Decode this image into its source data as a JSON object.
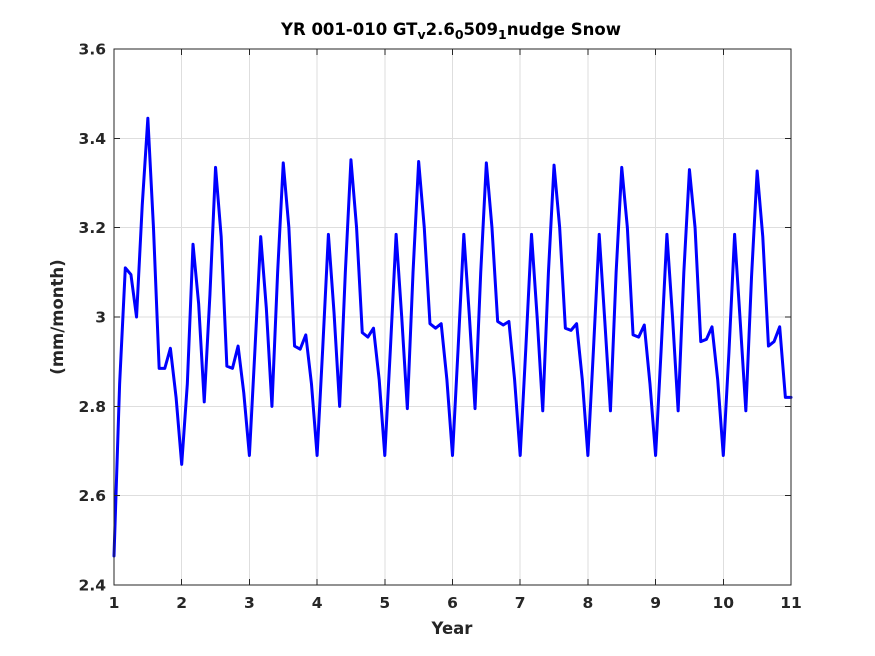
{
  "chart_data": {
    "type": "line",
    "title": {
      "parts": [
        {
          "text": "YR 001-010 GT",
          "shift": "base"
        },
        {
          "text": "v",
          "shift": "sub"
        },
        {
          "text": "2.6",
          "shift": "base"
        },
        {
          "text": "0",
          "shift": "sub"
        },
        {
          "text": "509",
          "shift": "base"
        },
        {
          "text": "1",
          "shift": "sub"
        },
        {
          "text": "nudge Snow",
          "shift": "base"
        }
      ]
    },
    "xlabel": "Year",
    "ylabel": "(mm/month)",
    "xlim": [
      1,
      11
    ],
    "ylim": [
      2.4,
      3.6
    ],
    "xticks": [
      1,
      2,
      3,
      4,
      5,
      6,
      7,
      8,
      9,
      10,
      11
    ],
    "xtick_labels": [
      "1",
      "2",
      "3",
      "4",
      "5",
      "6",
      "7",
      "8",
      "9",
      "10",
      "11"
    ],
    "yticks": [
      2.4,
      2.6,
      2.8,
      3.0,
      3.2,
      3.4,
      3.6
    ],
    "ytick_labels": [
      "2.4",
      "2.6",
      "2.8",
      "3",
      "3.2",
      "3.4",
      "3.6"
    ],
    "grid": true,
    "series": [
      {
        "color": "#0000ff",
        "x": [
          1.0,
          1.083,
          1.167,
          1.25,
          1.333,
          1.417,
          1.5,
          1.583,
          1.667,
          1.75,
          1.833,
          1.917,
          2.0,
          2.083,
          2.167,
          2.25,
          2.333,
          2.417,
          2.5,
          2.583,
          2.667,
          2.75,
          2.833,
          2.917,
          3.0,
          3.083,
          3.167,
          3.25,
          3.333,
          3.417,
          3.5,
          3.583,
          3.667,
          3.75,
          3.833,
          3.917,
          4.0,
          4.083,
          4.167,
          4.25,
          4.333,
          4.417,
          4.5,
          4.583,
          4.667,
          4.75,
          4.833,
          4.917,
          5.0,
          5.083,
          5.167,
          5.25,
          5.333,
          5.417,
          5.5,
          5.583,
          5.667,
          5.75,
          5.833,
          5.917,
          6.0,
          6.083,
          6.167,
          6.25,
          6.333,
          6.417,
          6.5,
          6.583,
          6.667,
          6.75,
          6.833,
          6.917,
          7.0,
          7.083,
          7.167,
          7.25,
          7.333,
          7.417,
          7.5,
          7.583,
          7.667,
          7.75,
          7.833,
          7.917,
          8.0,
          8.083,
          8.167,
          8.25,
          8.333,
          8.417,
          8.5,
          8.583,
          8.667,
          8.75,
          8.833,
          8.917,
          9.0,
          9.083,
          9.167,
          9.25,
          9.333,
          9.417,
          9.5,
          9.583,
          9.667,
          9.75,
          9.833,
          9.917,
          10.0,
          10.083,
          10.167,
          10.25,
          10.333,
          10.417,
          10.5,
          10.583,
          10.667,
          10.75,
          10.833,
          10.917,
          11.0
        ],
        "y": [
          2.465,
          2.85,
          3.11,
          3.095,
          3.0,
          3.25,
          3.445,
          3.2,
          2.885,
          2.885,
          2.93,
          2.82,
          2.67,
          2.85,
          3.163,
          3.03,
          2.81,
          3.05,
          3.335,
          3.18,
          2.89,
          2.885,
          2.935,
          2.83,
          2.69,
          2.93,
          3.18,
          3.02,
          2.8,
          3.1,
          3.345,
          3.2,
          2.935,
          2.928,
          2.96,
          2.85,
          2.69,
          2.93,
          3.185,
          3.01,
          2.8,
          3.1,
          3.352,
          3.2,
          2.965,
          2.955,
          2.975,
          2.86,
          2.69,
          2.93,
          3.185,
          3.0,
          2.795,
          3.1,
          3.348,
          3.2,
          2.985,
          2.975,
          2.985,
          2.86,
          2.69,
          2.93,
          3.185,
          3.0,
          2.795,
          3.1,
          3.345,
          3.2,
          2.99,
          2.982,
          2.99,
          2.86,
          2.69,
          2.93,
          3.185,
          3.0,
          2.79,
          3.1,
          3.34,
          3.2,
          2.975,
          2.97,
          2.985,
          2.86,
          2.69,
          2.93,
          3.185,
          2.99,
          2.79,
          3.1,
          3.335,
          3.2,
          2.96,
          2.955,
          2.982,
          2.85,
          2.69,
          2.93,
          3.185,
          3.0,
          2.79,
          3.1,
          3.33,
          3.2,
          2.945,
          2.95,
          2.978,
          2.86,
          2.69,
          2.92,
          3.185,
          2.99,
          2.79,
          3.09,
          3.327,
          3.18,
          2.935,
          2.945,
          2.978,
          2.82,
          2.82
        ]
      }
    ]
  }
}
